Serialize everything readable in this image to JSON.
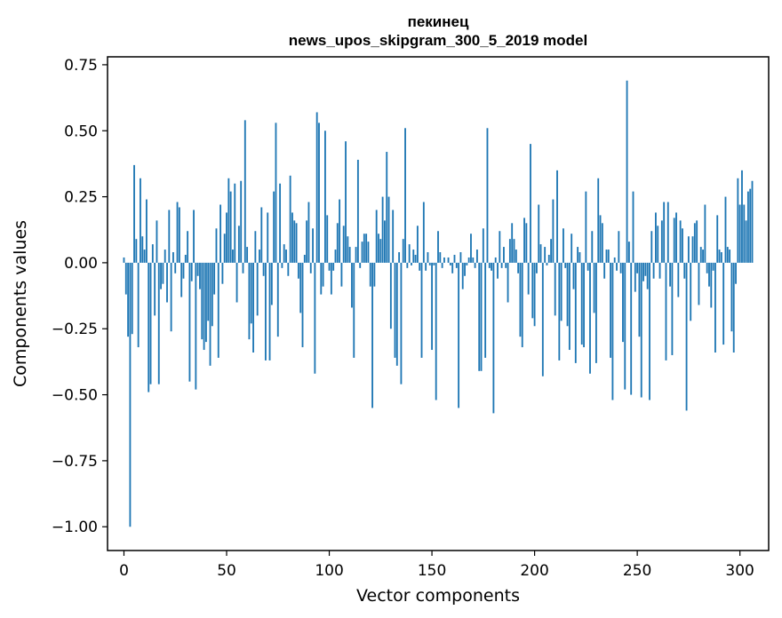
{
  "chart_data": {
    "type": "bar",
    "title": "пекинец",
    "subtitle": "news_upos_skipgram_300_5_2019 model",
    "xlabel": "Vector components",
    "ylabel": "Components values",
    "xlim": [
      -8,
      314
    ],
    "ylim": [
      -1.09,
      0.78
    ],
    "xticks": [
      0,
      50,
      100,
      150,
      200,
      250,
      300
    ],
    "xtick_labels": [
      "0",
      "50",
      "100",
      "150",
      "200",
      "250",
      "300"
    ],
    "yticks": [
      -1.0,
      -0.75,
      -0.5,
      -0.25,
      0.0,
      0.25,
      0.5,
      0.75
    ],
    "ytick_labels": [
      "−1.00",
      "−0.75",
      "−0.50",
      "−0.25",
      "0.00",
      "0.25",
      "0.50",
      "0.75"
    ],
    "grid": false,
    "bar_color": "#1f77b4",
    "values": [
      0.02,
      -0.12,
      -0.28,
      -1.0,
      -0.27,
      0.37,
      0.09,
      -0.32,
      0.32,
      0.1,
      0.05,
      0.24,
      -0.49,
      -0.46,
      0.07,
      -0.2,
      0.16,
      -0.46,
      -0.1,
      -0.08,
      0.05,
      -0.15,
      0.2,
      -0.26,
      0.04,
      -0.04,
      0.23,
      0.21,
      -0.13,
      -0.06,
      0.03,
      0.12,
      -0.45,
      -0.07,
      0.2,
      -0.48,
      -0.05,
      -0.1,
      -0.29,
      -0.33,
      -0.3,
      -0.22,
      -0.39,
      -0.24,
      -0.12,
      0.13,
      -0.36,
      0.22,
      -0.08,
      0.11,
      0.19,
      0.32,
      0.27,
      0.05,
      0.3,
      -0.15,
      0.14,
      0.31,
      -0.04,
      0.54,
      0.06,
      -0.29,
      -0.23,
      -0.34,
      0.12,
      -0.2,
      0.05,
      0.21,
      -0.05,
      -0.37,
      0.19,
      -0.37,
      -0.16,
      0.27,
      0.53,
      -0.28,
      0.3,
      -0.02,
      0.07,
      0.05,
      -0.05,
      0.33,
      0.19,
      0.16,
      0.15,
      -0.06,
      -0.19,
      -0.32,
      0.03,
      0.16,
      0.23,
      -0.04,
      0.13,
      -0.42,
      0.57,
      0.53,
      -0.12,
      -0.09,
      0.5,
      0.18,
      -0.03,
      -0.12,
      -0.03,
      0.05,
      0.15,
      0.24,
      -0.09,
      0.14,
      0.46,
      0.1,
      0.06,
      -0.17,
      -0.36,
      0.06,
      0.39,
      -0.02,
      0.08,
      0.11,
      0.11,
      0.08,
      -0.09,
      -0.55,
      -0.09,
      0.2,
      0.11,
      0.09,
      0.25,
      0.16,
      0.42,
      0.25,
      -0.25,
      0.2,
      -0.36,
      -0.39,
      0.04,
      -0.46,
      0.09,
      0.51,
      -0.02,
      0.07,
      -0.01,
      0.05,
      0.03,
      0.14,
      -0.03,
      -0.36,
      0.23,
      -0.03,
      0.04,
      -0.01,
      -0.33,
      -0.01,
      -0.52,
      0.12,
      0.04,
      -0.02,
      0.02,
      0.0,
      0.02,
      -0.01,
      -0.04,
      0.03,
      -0.02,
      -0.55,
      0.04,
      -0.1,
      -0.05,
      -0.01,
      0.02,
      0.11,
      0.02,
      -0.02,
      0.05,
      -0.41,
      -0.41,
      0.13,
      -0.36,
      0.51,
      -0.02,
      -0.03,
      -0.57,
      0.02,
      -0.06,
      0.12,
      -0.02,
      0.06,
      -0.02,
      -0.15,
      0.09,
      0.15,
      0.09,
      0.05,
      -0.04,
      -0.28,
      -0.32,
      0.17,
      0.15,
      -0.12,
      0.45,
      -0.21,
      -0.24,
      -0.04,
      0.22,
      0.07,
      -0.43,
      0.06,
      -0.01,
      0.03,
      0.09,
      0.24,
      -0.2,
      0.35,
      -0.37,
      -0.22,
      0.13,
      -0.02,
      -0.24,
      -0.33,
      0.11,
      -0.1,
      -0.38,
      0.06,
      0.04,
      -0.31,
      -0.32,
      0.27,
      -0.03,
      -0.42,
      0.12,
      -0.19,
      -0.38,
      0.32,
      0.18,
      0.15,
      -0.06,
      0.05,
      0.05,
      -0.36,
      -0.52,
      0.02,
      -0.03,
      0.12,
      -0.04,
      -0.3,
      -0.48,
      0.69,
      0.08,
      -0.5,
      0.27,
      -0.11,
      -0.04,
      -0.28,
      -0.51,
      -0.07,
      -0.05,
      -0.1,
      -0.52,
      0.12,
      -0.06,
      0.19,
      0.14,
      -0.06,
      0.16,
      0.23,
      -0.37,
      0.23,
      -0.09,
      -0.35,
      0.17,
      0.19,
      -0.13,
      0.16,
      0.13,
      -0.06,
      -0.56,
      0.1,
      -0.22,
      0.1,
      0.15,
      0.16,
      -0.16,
      0.06,
      0.05,
      0.22,
      -0.04,
      -0.09,
      -0.17,
      -0.03,
      -0.34,
      0.18,
      0.05,
      0.04,
      -0.31,
      0.25,
      0.06,
      0.05,
      -0.26,
      -0.34,
      -0.08,
      0.32,
      0.22,
      0.35,
      0.22,
      0.16,
      0.27,
      0.28,
      0.31
    ]
  }
}
